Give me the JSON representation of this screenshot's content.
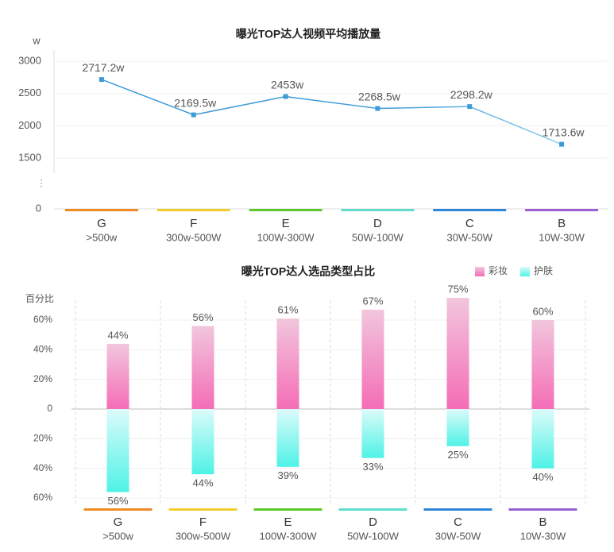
{
  "chart_data": [
    {
      "type": "line",
      "title": "曝光TOP达人视频平均播放量",
      "y_unit": "w",
      "categories": [
        "G",
        "F",
        "E",
        "D",
        "C",
        "B"
      ],
      "category_sublabels": [
        ">500w",
        "300w-500W",
        "100W-300W",
        "50W-100W",
        "30W-50W",
        "10W-30W"
      ],
      "category_colors": [
        "#f08a24",
        "#f2cc2e",
        "#5cc82a",
        "#5fdccc",
        "#2f86d8",
        "#9b5fd0"
      ],
      "series": [
        {
          "color": "#3d9bd6",
          "color_end": "#a8ddf2",
          "values": [
            2717.2,
            2169.5,
            2453,
            2268.5,
            2298.2,
            1713.6
          ],
          "value_labels": [
            "2717.2w",
            "2169.5w",
            "2453w",
            "2268.5w",
            "2298.2w",
            "1713.6w"
          ]
        }
      ],
      "ylim": [
        0,
        3100
      ],
      "yticks": [
        0,
        1500,
        2000,
        2500,
        3000
      ],
      "axis_break": [
        0,
        1500
      ],
      "grid": true
    },
    {
      "type": "diverging_bar",
      "title": "曝光TOP达人选品类型占比",
      "y_label": "百分比",
      "categories": [
        "G",
        "F",
        "E",
        "D",
        "C",
        "B"
      ],
      "category_sublabels": [
        ">500w",
        "300w-500W",
        "100W-300W",
        "50W-100W",
        "30W-50W",
        "10W-30W"
      ],
      "category_colors": [
        "#f08a24",
        "#f2cc2e",
        "#5cc82a",
        "#5fdccc",
        "#2f86d8",
        "#9b5fd0"
      ],
      "series": [
        {
          "name": "彩妆",
          "direction": "up",
          "color": "#f46db6",
          "color_light": "#f2c6dd",
          "values": [
            44,
            56,
            61,
            67,
            75,
            60
          ],
          "value_labels": [
            "44%",
            "56%",
            "61%",
            "67%",
            "75%",
            "60%"
          ]
        },
        {
          "name": "护肤",
          "direction": "down",
          "color": "#4ff2e6",
          "color_light": "#dcfbfa",
          "values": [
            56,
            44,
            39,
            33,
            25,
            40
          ],
          "value_labels": [
            "56%",
            "44%",
            "39%",
            "33%",
            "25%",
            "40%"
          ]
        }
      ],
      "ylim": [
        -60,
        75
      ],
      "yticks": [
        {
          "value": 60,
          "label": "60%"
        },
        {
          "value": 40,
          "label": "40%"
        },
        {
          "value": 20,
          "label": "20%"
        },
        0,
        {
          "value": -20,
          "label": "20%"
        },
        {
          "value": -40,
          "label": "40%"
        },
        {
          "value": -60,
          "label": "60%"
        }
      ],
      "legend": "top-right",
      "grid": true
    }
  ]
}
